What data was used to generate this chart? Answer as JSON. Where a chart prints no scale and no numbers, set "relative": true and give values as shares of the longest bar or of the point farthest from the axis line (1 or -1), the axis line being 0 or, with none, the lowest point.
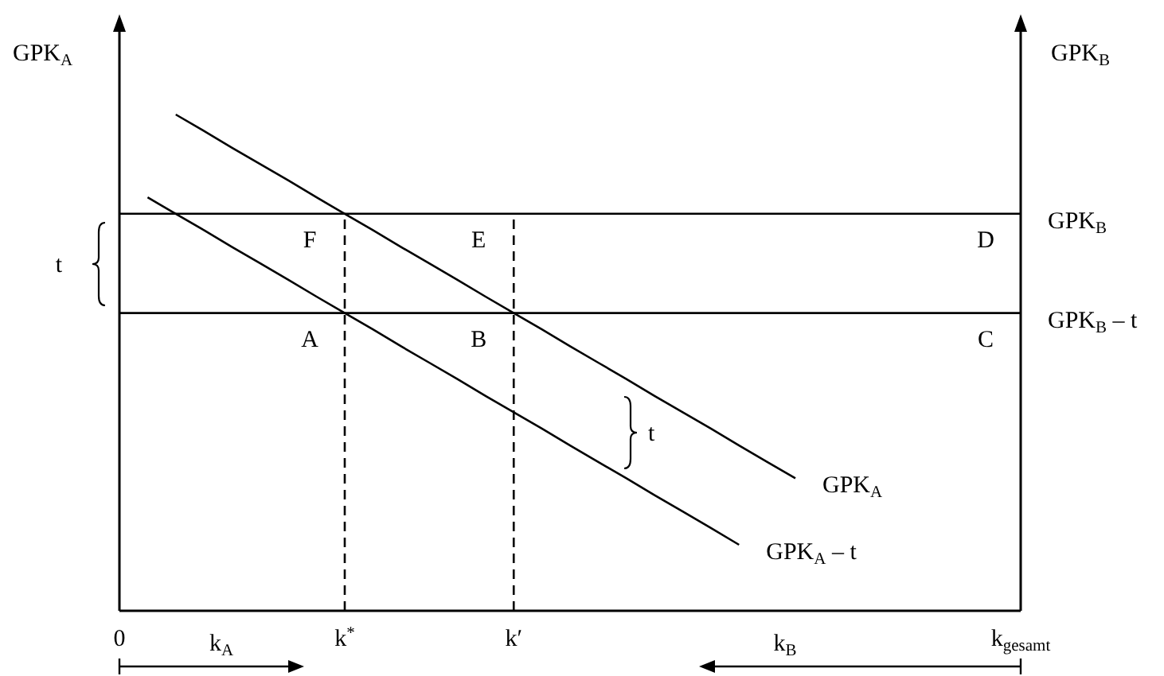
{
  "chart_data": {
    "type": "line",
    "relative": true,
    "ylabel": "GPK$_{A}$",
    "y2label": "GPK$_{B}$",
    "categories": [
      "0",
      null,
      null,
      null,
      null,
      null,
      null,
      null,
      "k$^{*}$",
      null,
      null,
      null,
      null,
      null,
      "k′",
      null,
      null,
      null,
      null,
      null,
      null,
      null,
      null,
      null,
      null,
      null,
      null,
      null,
      null,
      null,
      null,
      null,
      "k$_{gesamt}$"
    ],
    "series": [
      {
        "name": "GPK$_{B}$",
        "color": "#000000",
        "values": [
          0.8,
          0.8,
          0.8,
          0.8,
          0.8,
          0.8,
          0.8,
          0.8,
          0.8,
          0.8,
          0.8,
          0.8,
          0.8,
          0.8,
          0.8,
          0.8,
          0.8,
          0.8,
          0.8,
          0.8,
          0.8,
          0.8,
          0.8,
          0.8,
          0.8,
          0.8,
          0.8,
          0.8,
          0.8,
          0.8,
          0.8,
          0.8,
          0.8
        ]
      },
      {
        "name": "GPK$_{B}$ – t",
        "color": "#000000",
        "values": [
          0.6,
          0.6,
          0.6,
          0.6,
          0.6,
          0.6,
          0.6,
          0.6,
          0.6,
          0.6,
          0.6,
          0.6,
          0.6,
          0.6,
          0.6,
          0.6,
          0.6,
          0.6,
          0.6,
          0.6,
          0.6,
          0.6,
          0.6,
          0.6,
          0.6,
          0.6,
          0.6,
          0.6,
          0.6,
          0.6,
          0.6,
          0.6,
          0.6
        ]
      },
      {
        "name": "GPK$_{A}$",
        "color": "#000000",
        "values": [
          null,
          null,
          1,
          0.967,
          0.933,
          0.9,
          0.867,
          0.833,
          0.8,
          0.767,
          0.733,
          0.7,
          0.667,
          0.633,
          0.6,
          0.567,
          0.533,
          0.5,
          0.467,
          0.433,
          0.4,
          0.367,
          0.333,
          0.3,
          0.267,
          null,
          null,
          null,
          null,
          null,
          null,
          null,
          null
        ]
      },
      {
        "name": "GPK$_{A}$ – t",
        "color": "#000000",
        "values": [
          null,
          0.833,
          0.8,
          0.767,
          0.733,
          0.7,
          0.667,
          0.633,
          0.6,
          0.567,
          0.533,
          0.5,
          0.467,
          0.433,
          0.4,
          0.367,
          0.333,
          0.3,
          0.267,
          0.233,
          0.2,
          0.167,
          0.133,
          null,
          null,
          null,
          null,
          null,
          null,
          null,
          null,
          null,
          null
        ]
      }
    ],
    "ref_lines": [
      {
        "axis": "x",
        "value": "k$^{*}$",
        "color": "#000000",
        "line_style": "dashed"
      },
      {
        "axis": "x",
        "value": "k′",
        "color": "#000000",
        "line_style": "dashed"
      }
    ],
    "annotations": [
      {
        "text": "F",
        "x": "k$^{*}$",
        "y": 0.8
      },
      {
        "text": "E",
        "x": "k′",
        "y": 0.8
      },
      {
        "text": "A",
        "x": "k$^{*}$",
        "y": 0.6
      },
      {
        "text": "B",
        "x": "k′",
        "y": 0.6
      },
      {
        "text": "D",
        "x": "k$_{gesamt}$",
        "y": 0.8
      },
      {
        "text": "C",
        "x": "k$_{gesamt}$",
        "y": 0.6
      },
      "t",
      "t",
      "k$_{A}$",
      "k$_{B}$"
    ]
  }
}
